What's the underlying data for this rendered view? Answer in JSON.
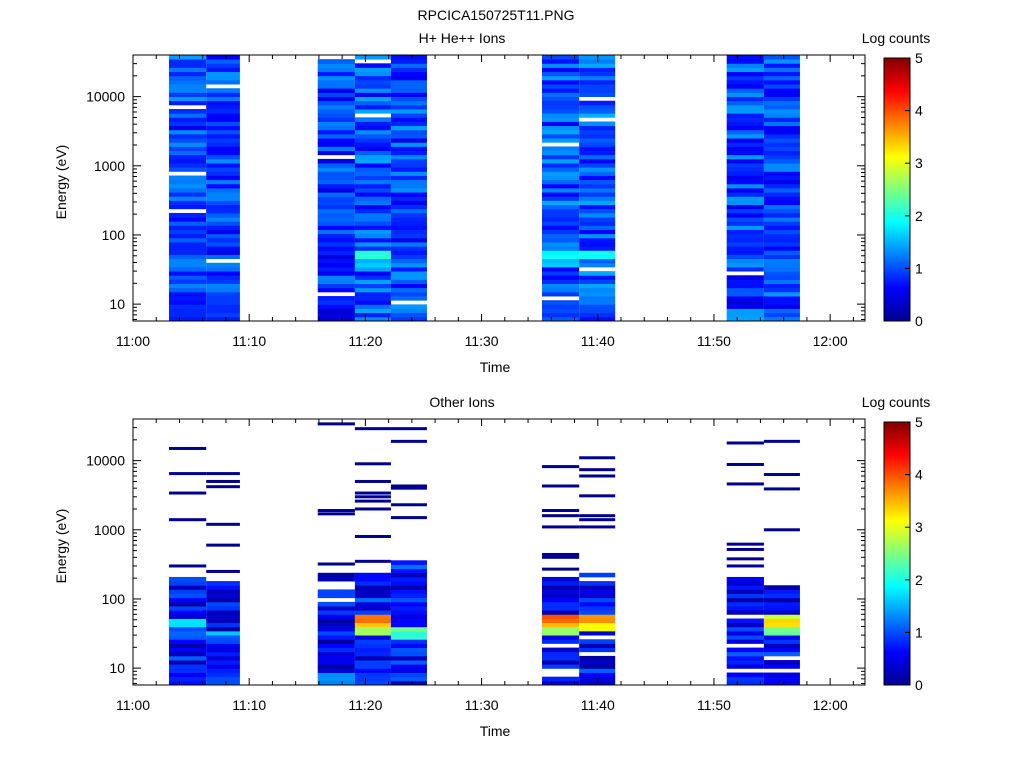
{
  "figure_title": "RPCICA150725T11.PNG",
  "colormap": [
    "#00008f",
    "#0000ff",
    "#0080ff",
    "#00ffff",
    "#80ff80",
    "#ffff00",
    "#ff8000",
    "#ff0000",
    "#800000"
  ],
  "chart_data": [
    {
      "type": "heatmap",
      "title": "H+ He++ Ions",
      "xlabel": "Time",
      "ylabel": "Energy (eV)",
      "colorbar_label": "Log counts",
      "colorbar_ticks": [
        "0",
        "1",
        "2",
        "3",
        "4",
        "5"
      ],
      "colorbar_range": [
        0,
        5
      ],
      "x_ticks": [
        "11:00",
        "11:10",
        "11:20",
        "11:30",
        "11:40",
        "11:50",
        "12:00"
      ],
      "x_range_minutes": [
        0,
        63
      ],
      "y_scale": "log",
      "y_ticks": [
        "10",
        "100",
        "1000",
        "10000"
      ],
      "y_range": [
        5.7,
        40000
      ],
      "columns": [
        {
          "start": 3.1,
          "end": 6.3,
          "base": 0.95,
          "spread": 0.45,
          "fill": 0.97,
          "hot": [
            [
              5.7,
              15,
              0.75
            ]
          ]
        },
        {
          "start": 6.3,
          "end": 9.2,
          "base": 0.95,
          "spread": 0.45,
          "fill": 0.97,
          "hot": [
            [
              5.7,
              15,
              0.85
            ]
          ]
        },
        {
          "start": 15.9,
          "end": 19.1,
          "base": 0.9,
          "spread": 0.45,
          "fill": 0.97,
          "hot": [
            [
              5.7,
              9,
              0.45
            ]
          ]
        },
        {
          "start": 19.1,
          "end": 22.2,
          "base": 1.0,
          "spread": 0.45,
          "fill": 0.97,
          "hot": [
            [
              45,
              60,
              2.0
            ],
            [
              35,
              45,
              1.55
            ]
          ]
        },
        {
          "start": 22.2,
          "end": 25.3,
          "base": 0.95,
          "spread": 0.45,
          "fill": 0.97,
          "hot": []
        },
        {
          "start": 35.2,
          "end": 38.4,
          "base": 1.0,
          "spread": 0.45,
          "fill": 0.97,
          "hot": [
            [
              45,
              60,
              1.9
            ],
            [
              35,
              45,
              1.6
            ]
          ]
        },
        {
          "start": 38.4,
          "end": 41.5,
          "base": 1.05,
          "spread": 0.45,
          "fill": 0.97,
          "hot": [
            [
              45,
              60,
              2.0
            ],
            [
              12,
              18,
              1.25
            ]
          ]
        },
        {
          "start": 51.1,
          "end": 54.3,
          "base": 0.95,
          "spread": 0.45,
          "fill": 0.97,
          "hot": [
            [
              5.7,
              9,
              1.4
            ],
            [
              9,
              14,
              0.5
            ]
          ]
        },
        {
          "start": 54.3,
          "end": 57.4,
          "base": 0.95,
          "spread": 0.45,
          "fill": 0.97,
          "hot": []
        }
      ]
    },
    {
      "type": "heatmap",
      "title": "Other Ions",
      "xlabel": "Time",
      "ylabel": "Energy (eV)",
      "colorbar_label": "Log counts",
      "colorbar_ticks": [
        "0",
        "1",
        "2",
        "3",
        "4",
        "5"
      ],
      "colorbar_range": [
        0,
        5
      ],
      "x_ticks": [
        "11:00",
        "11:10",
        "11:20",
        "11:30",
        "11:40",
        "11:50",
        "12:00"
      ],
      "x_range_minutes": [
        0,
        63
      ],
      "y_scale": "log",
      "y_ticks": [
        "10",
        "100",
        "1000",
        "10000"
      ],
      "y_range": [
        5.7,
        40000
      ],
      "columns": [
        {
          "start": 3.1,
          "end": 6.3,
          "dense_top": 200,
          "base": 0.6,
          "spread": 0.5,
          "fill": 0.92,
          "lines": [
            15000,
            6500,
            3400,
            1400,
            300
          ],
          "hot": [
            [
              40,
              50,
              1.7
            ],
            [
              25,
              40,
              1.1
            ]
          ]
        },
        {
          "start": 6.3,
          "end": 9.2,
          "dense_top": 170,
          "base": 0.55,
          "spread": 0.5,
          "fill": 0.9,
          "lines": [
            6500,
            5000,
            4200,
            1200,
            600,
            250
          ],
          "hot": [
            [
              28,
              36,
              1.5
            ]
          ]
        },
        {
          "start": 15.9,
          "end": 19.1,
          "dense_top": 230,
          "base": 0.55,
          "spread": 0.5,
          "fill": 0.9,
          "lines": [
            34000,
            1900,
            1700,
            320
          ],
          "hot": [
            [
              5.7,
              9,
              1.3
            ]
          ]
        },
        {
          "start": 19.1,
          "end": 22.2,
          "dense_top": 230,
          "base": 0.7,
          "spread": 0.5,
          "fill": 0.9,
          "lines": [
            29000,
            9000,
            5000,
            3400,
            3000,
            2600,
            2000,
            800,
            350
          ],
          "hot": [
            [
              48,
              62,
              3.8
            ],
            [
              38,
              48,
              3.3
            ],
            [
              28,
              38,
              2.6
            ]
          ]
        },
        {
          "start": 22.2,
          "end": 25.3,
          "dense_top": 370,
          "base": 0.7,
          "spread": 0.5,
          "fill": 0.92,
          "lines": [
            29000,
            19000,
            4300,
            4000,
            2300,
            1500
          ],
          "hot": [
            [
              33,
              42,
              2.4
            ],
            [
              25,
              33,
              2.1
            ]
          ]
        },
        {
          "start": 35.2,
          "end": 38.4,
          "dense_top": 210,
          "base": 0.65,
          "spread": 0.5,
          "fill": 0.9,
          "lines": [
            8200,
            4300,
            1900,
            1600,
            1100,
            440,
            400,
            270
          ],
          "hot": [
            [
              46,
              60,
              3.9
            ],
            [
              38,
              46,
              3.5
            ],
            [
              30,
              38,
              2.6
            ]
          ]
        },
        {
          "start": 38.4,
          "end": 41.5,
          "dense_top": 230,
          "base": 0.6,
          "spread": 0.5,
          "fill": 0.88,
          "lines": [
            11000,
            7400,
            6000,
            3100,
            1600,
            1400,
            1100
          ],
          "hot": [
            [
              44,
              58,
              3.6
            ],
            [
              36,
              44,
              3.1
            ]
          ]
        },
        {
          "start": 51.1,
          "end": 54.3,
          "dense_top": 210,
          "base": 0.6,
          "spread": 0.5,
          "fill": 0.92,
          "lines": [
            18000,
            8800,
            4600,
            620,
            520,
            380,
            300
          ],
          "hot": []
        },
        {
          "start": 54.3,
          "end": 57.4,
          "dense_top": 160,
          "base": 0.6,
          "spread": 0.5,
          "fill": 0.88,
          "lines": [
            19000,
            6300,
            3900,
            1000
          ],
          "hot": [
            [
              50,
              60,
              2.9
            ],
            [
              38,
              50,
              3.3
            ],
            [
              30,
              38,
              2.4
            ]
          ]
        }
      ]
    }
  ]
}
